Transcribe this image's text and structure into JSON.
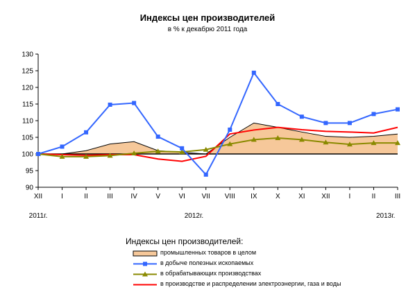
{
  "chart_data": {
    "type": "line",
    "title": "Индексы цен производителей",
    "subtitle": "в % к декабрю 2011 года",
    "categories": [
      "XII",
      "I",
      "II",
      "III",
      "IV",
      "V",
      "VI",
      "VII",
      "VIII",
      "IX",
      "X",
      "XI",
      "XII",
      "I",
      "II",
      "III"
    ],
    "year_labels": [
      {
        "label": "2011г.",
        "index": 0
      },
      {
        "label": "2012г.",
        "index": 6.5
      },
      {
        "label": "2013г.",
        "index": 14.5
      }
    ],
    "ylim": [
      90,
      130
    ],
    "yticks": [
      90,
      95,
      100,
      105,
      110,
      115,
      120,
      125,
      130
    ],
    "baseline": 100,
    "grid": false,
    "legend_title": "Индексы цен производителей:",
    "series": [
      {
        "name": "промышленных товаров в целом",
        "style": "area",
        "color": "#f6c89a",
        "stroke": "#000000",
        "values": [
          100,
          100,
          101,
          103,
          103.7,
          101,
          100.5,
          100,
          105,
          109.3,
          108,
          106.6,
          105.3,
          105,
          105.3,
          106
        ]
      },
      {
        "name": "в добыче полезных ископаемых",
        "style": "line-square",
        "color": "#3366ff",
        "values": [
          100,
          102.2,
          106.5,
          114.8,
          115.3,
          105.2,
          101.7,
          93.8,
          107.3,
          124.4,
          115,
          111.2,
          109.3,
          109.3,
          112,
          113.4
        ]
      },
      {
        "name": "в обрабатывающих производствах",
        "style": "line-triangle",
        "color": "#8a8a00",
        "values": [
          100,
          99.2,
          99.2,
          99.5,
          100.2,
          100.8,
          100.6,
          101.3,
          103,
          104.3,
          104.8,
          104.3,
          103.5,
          102.9,
          103.3,
          103.3
        ]
      },
      {
        "name": "в производстве и распределении электроэнергии, газа и воды",
        "style": "line",
        "color": "#ff0000",
        "values": [
          100,
          99.8,
          99.6,
          99.8,
          99.8,
          98.5,
          97.8,
          99.3,
          106,
          107.2,
          108,
          107.3,
          106.8,
          106.6,
          106.3,
          108
        ]
      }
    ]
  }
}
